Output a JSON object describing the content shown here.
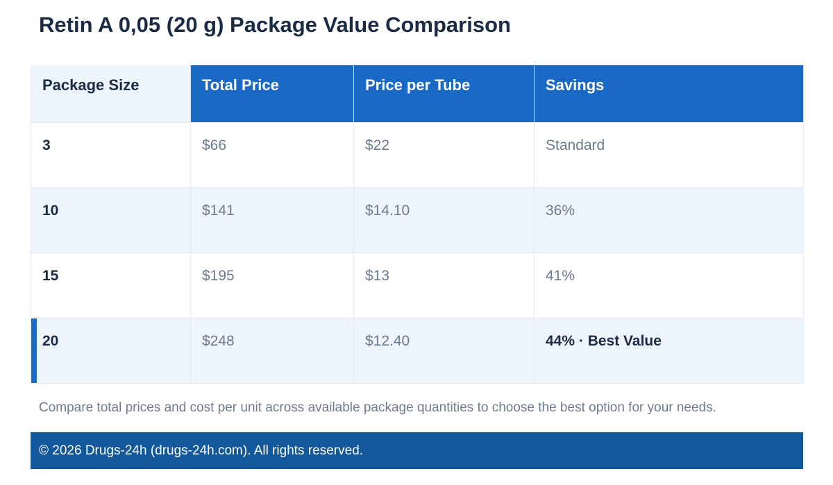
{
  "page": {
    "title": "Retin A 0,05 (20 g) Package Value Comparison",
    "note": "Compare total prices and cost per unit across available package quantities to choose the best option for your needs.",
    "footer": "© 2026 Drugs-24h (drugs-24h.com). All rights reserved."
  },
  "table": {
    "headers": [
      "Package Size",
      "Total Price",
      "Price per Tube",
      "Savings"
    ],
    "rows": [
      {
        "size": "3",
        "total": "$66",
        "per_tube": "$22",
        "savings": "Standard"
      },
      {
        "size": "10",
        "total": "$141",
        "per_tube": "$14.10",
        "savings": "36%"
      },
      {
        "size": "15",
        "total": "$195",
        "per_tube": "$13",
        "savings": "41%"
      },
      {
        "size": "20",
        "total": "$248",
        "per_tube": "$12.40",
        "savings": "44% · Best Value"
      }
    ]
  },
  "colors": {
    "header_accent": "#1a6ac5",
    "footer_bg": "#14589c",
    "row_alt_bg": "#eef4fc",
    "title_text": "#1a2b45",
    "muted_text": "#6b7b91"
  }
}
